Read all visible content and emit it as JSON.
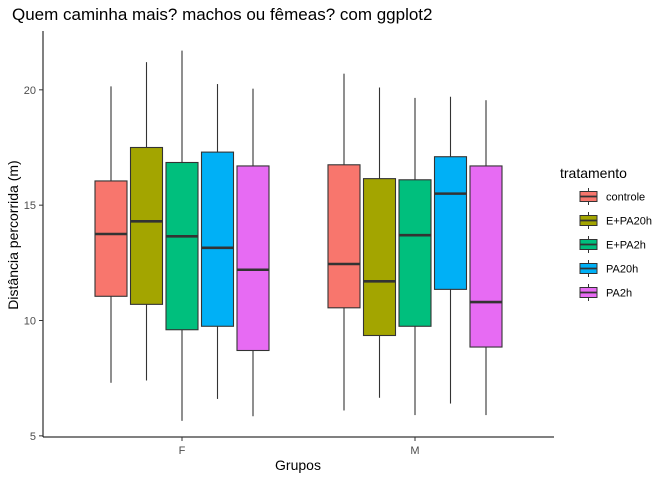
{
  "chart_data": {
    "type": "boxplot",
    "title": "Quem caminha mais? machos ou fêmeas? com ggplot2",
    "xlabel": "Grupos",
    "ylabel": "Distância percorrida (m)",
    "categories": [
      "F",
      "M"
    ],
    "yticks": [
      5,
      10,
      15,
      20
    ],
    "ylim": [
      4.95,
      22.55
    ],
    "grid": false,
    "legend": {
      "title": "tratamento",
      "placement": "right"
    },
    "series": [
      {
        "name": "controle",
        "color": "#F8766D",
        "boxes": [
          {
            "min": 7.3,
            "q1": 11.05,
            "median": 13.75,
            "q3": 16.05,
            "max": 20.15
          },
          {
            "min": 6.1,
            "q1": 10.55,
            "median": 12.45,
            "q3": 16.75,
            "max": 20.7
          }
        ]
      },
      {
        "name": "E+PA20h",
        "color": "#A3A500",
        "boxes": [
          {
            "min": 7.4,
            "q1": 10.7,
            "median": 14.3,
            "q3": 17.5,
            "max": 21.2
          },
          {
            "min": 6.65,
            "q1": 9.35,
            "median": 11.7,
            "q3": 16.15,
            "max": 20.1
          }
        ]
      },
      {
        "name": "E+PA2h",
        "color": "#00BF7D",
        "boxes": [
          {
            "min": 5.65,
            "q1": 9.6,
            "median": 13.65,
            "q3": 16.85,
            "max": 21.7
          },
          {
            "min": 5.9,
            "q1": 9.75,
            "median": 13.7,
            "q3": 16.1,
            "max": 19.65
          }
        ]
      },
      {
        "name": "PA20h",
        "color": "#00B0F6",
        "boxes": [
          {
            "min": 6.6,
            "q1": 9.75,
            "median": 13.15,
            "q3": 17.3,
            "max": 20.25
          },
          {
            "min": 6.4,
            "q1": 11.35,
            "median": 15.5,
            "q3": 17.1,
            "max": 19.7
          }
        ]
      },
      {
        "name": "PA2h",
        "color": "#E76BF3",
        "boxes": [
          {
            "min": 5.85,
            "q1": 8.7,
            "median": 12.2,
            "q3": 16.7,
            "max": 20.05
          },
          {
            "min": 5.9,
            "q1": 8.85,
            "median": 10.8,
            "q3": 16.7,
            "max": 19.55
          }
        ]
      }
    ]
  }
}
